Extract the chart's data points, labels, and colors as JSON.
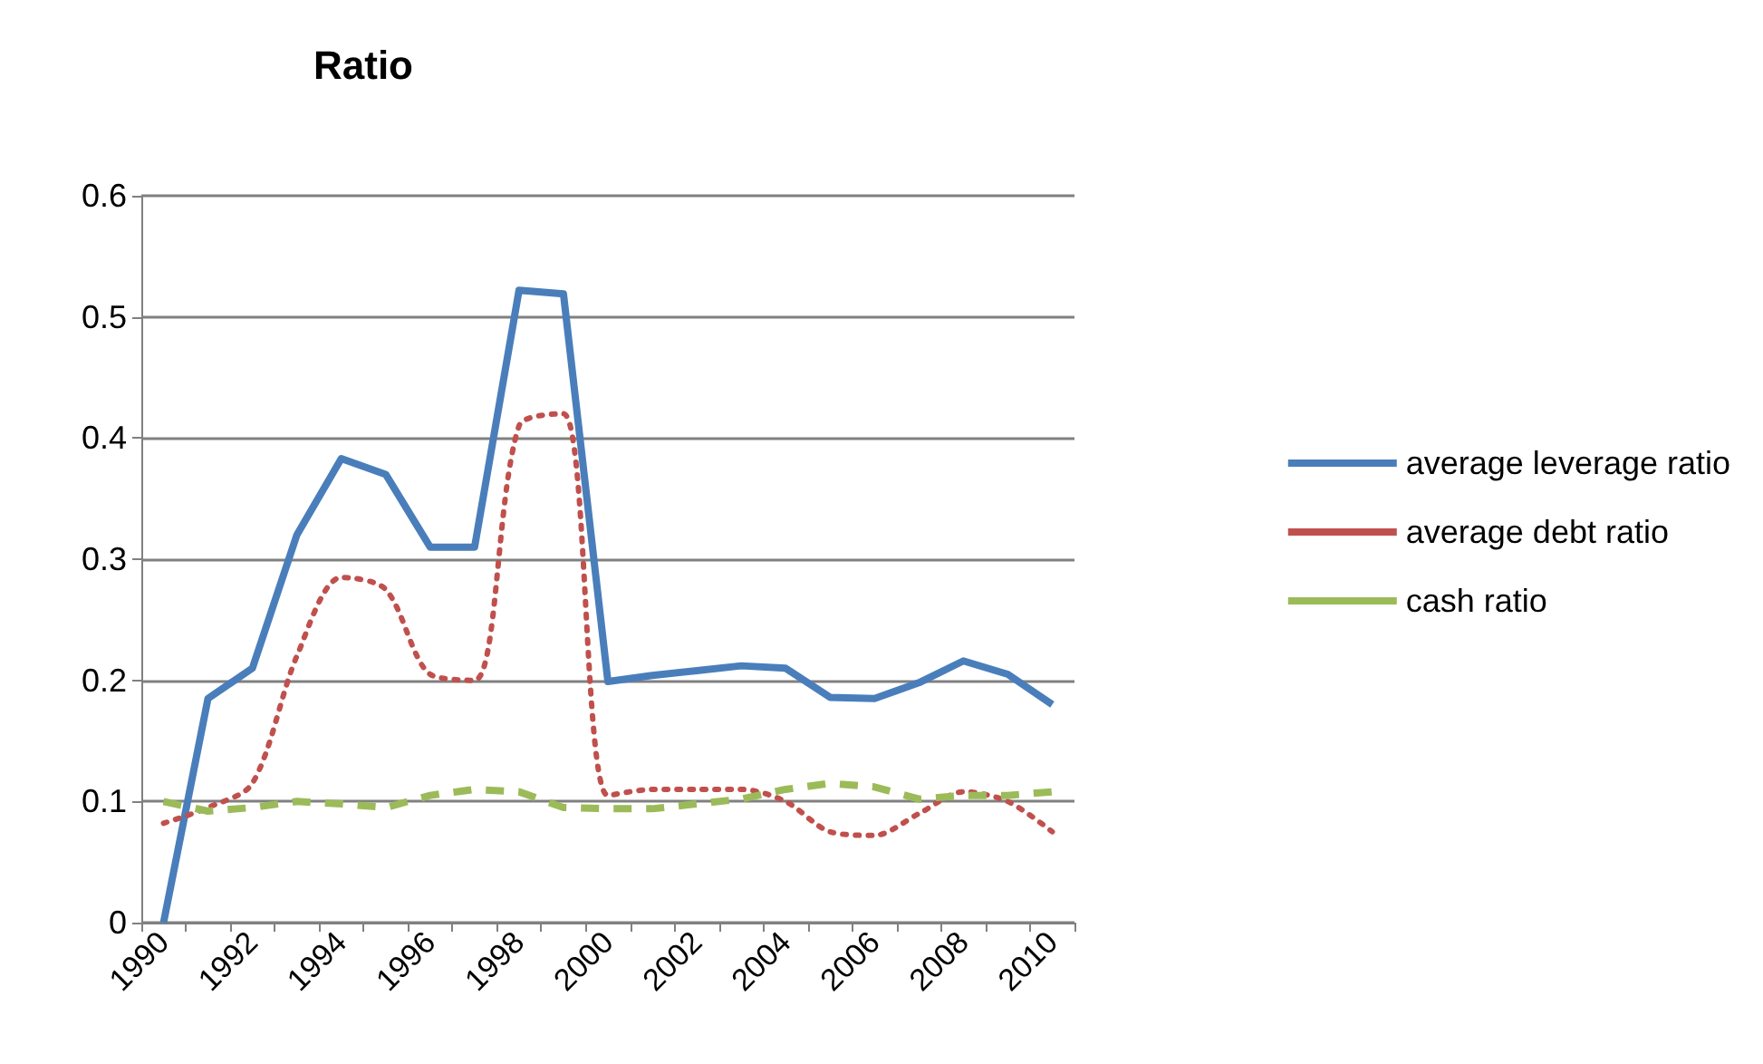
{
  "chart_data": {
    "type": "line",
    "title": "Ratio",
    "categories": [
      "1990",
      null,
      "1992",
      null,
      "1994",
      null,
      "1996",
      null,
      "1998",
      null,
      "2000",
      null,
      "2002",
      null,
      "2004",
      null,
      "2006",
      null,
      "2008",
      null,
      "2010"
    ],
    "series": [
      {
        "name": "average leverage ratio",
        "color": "#4a7ebb",
        "line_style": "solid",
        "values": [
          0,
          0.185,
          0.21,
          0.32,
          0.383,
          0.37,
          0.31,
          0.31,
          0.522,
          0.519,
          0.199,
          0.204,
          0.208,
          0.212,
          0.21,
          0.186,
          0.185,
          0.198,
          0.216,
          0.205,
          0.18
        ]
      },
      {
        "name": "average debt ratio",
        "color": "#c0504d",
        "line_style": "dotted",
        "values": [
          0.082,
          0.095,
          0.115,
          0.22,
          0.285,
          0.275,
          0.205,
          0.2,
          0.41,
          0.42,
          0.105,
          0.11,
          0.11,
          0.11,
          0.1,
          0.075,
          0.072,
          0.09,
          0.108,
          0.1,
          0.075
        ]
      },
      {
        "name": "cash ratio",
        "color": "#9bbb59",
        "line_style": "dashed",
        "values": [
          0.1,
          0.092,
          0.095,
          0.1,
          0.098,
          0.095,
          0.105,
          0.11,
          0.108,
          0.095,
          0.094,
          0.094,
          0.098,
          0.102,
          0.11,
          0.115,
          0.112,
          0.102,
          0.105,
          0.105,
          0.108
        ]
      }
    ],
    "ylim": [
      0,
      0.6
    ],
    "yticks": [
      0,
      0.1,
      0.2,
      0.3,
      0.4,
      0.5,
      0.6
    ],
    "grid": "y",
    "legend": "right",
    "marker": "none"
  }
}
